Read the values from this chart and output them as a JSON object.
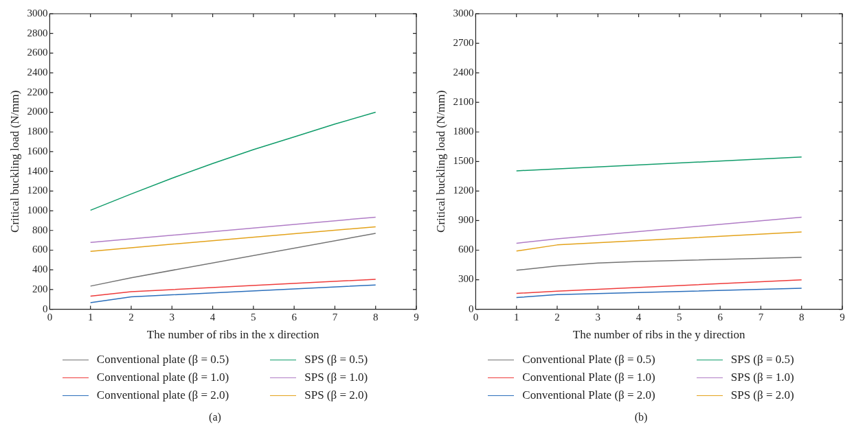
{
  "chart_data": [
    {
      "type": "line",
      "xlabel": "The number of ribs in the x direction",
      "ylabel": "Critical buckling load (N/mm)",
      "xlim": [
        0,
        9
      ],
      "xticks": [
        0,
        1,
        2,
        3,
        4,
        5,
        6,
        7,
        8,
        9
      ],
      "ylim": [
        0,
        3000
      ],
      "yticks": [
        0,
        200,
        400,
        600,
        800,
        1000,
        1200,
        1400,
        1600,
        1800,
        2000,
        2200,
        2400,
        2600,
        2800,
        3000
      ],
      "grid": false,
      "legend": "bottom",
      "marker": "none",
      "line_style": "solid",
      "annotations": [
        "(a)"
      ],
      "series": [
        {
          "name": "Conventional plate (β = 0.5)",
          "color": "#737373",
          "x": [
            1,
            2,
            8
          ],
          "values": [
            235,
            320,
            770
          ]
        },
        {
          "name": "Conventional plate (β = 1.0)",
          "color": "#ee3b3b",
          "x": [
            1,
            2,
            8
          ],
          "values": [
            133,
            178,
            304
          ]
        },
        {
          "name": "Conventional plate (β = 2.0)",
          "color": "#2a6ebb",
          "x": [
            1,
            2,
            8
          ],
          "values": [
            67,
            126,
            247
          ]
        },
        {
          "name": "SPS (β = 0.5)",
          "color": "#109c6a",
          "x": [
            1,
            2,
            3,
            4,
            5,
            6,
            7,
            8
          ],
          "values": [
            1005,
            1170,
            1330,
            1480,
            1620,
            1750,
            1880,
            2000
          ]
        },
        {
          "name": "SPS (β = 1.0)",
          "color": "#b07cc6",
          "x": [
            1,
            2,
            8
          ],
          "values": [
            678,
            715,
            935
          ]
        },
        {
          "name": "SPS (β = 2.0)",
          "color": "#e3a21a",
          "x": [
            1,
            2,
            8
          ],
          "values": [
            588,
            625,
            837
          ]
        }
      ]
    },
    {
      "type": "line",
      "xlabel": "The number of ribs in the y direction",
      "ylabel": "Critical buckling load (N/mm)",
      "xlim": [
        0,
        9
      ],
      "xticks": [
        0,
        1,
        2,
        3,
        4,
        5,
        6,
        7,
        8,
        9
      ],
      "ylim": [
        0,
        3000
      ],
      "yticks": [
        0,
        300,
        600,
        900,
        1200,
        1500,
        1800,
        2100,
        2400,
        2700,
        3000
      ],
      "grid": false,
      "legend": "bottom",
      "marker": "none",
      "line_style": "solid",
      "annotations": [
        "(b)"
      ],
      "series": [
        {
          "name": "Conventional Plate (β = 0.5)",
          "color": "#737373",
          "x": [
            1,
            2,
            3,
            4,
            8
          ],
          "values": [
            396,
            440,
            470,
            485,
            527
          ]
        },
        {
          "name": "Conventional Plate (β = 1.0)",
          "color": "#ee3b3b",
          "x": [
            1,
            2,
            8
          ],
          "values": [
            161,
            183,
            299
          ]
        },
        {
          "name": "Conventional Plate (β = 2.0)",
          "color": "#2a6ebb",
          "x": [
            1,
            2,
            8
          ],
          "values": [
            119,
            148,
            213
          ]
        },
        {
          "name": "SPS (β = 0.5)",
          "color": "#109c6a",
          "x": [
            1,
            8
          ],
          "values": [
            1405,
            1545
          ]
        },
        {
          "name": "SPS (β = 1.0)",
          "color": "#b07cc6",
          "x": [
            1,
            2,
            8
          ],
          "values": [
            670,
            715,
            935
          ]
        },
        {
          "name": "SPS (β = 2.0)",
          "color": "#e3a21a",
          "x": [
            1,
            2,
            8
          ],
          "values": [
            591,
            653,
            784
          ]
        }
      ]
    }
  ]
}
